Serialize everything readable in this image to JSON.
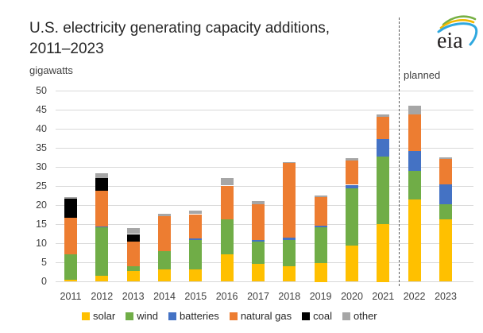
{
  "header": {
    "title_line1": "U.S. electricity generating capacity additions,",
    "title_line2": "2011–2023",
    "units_label": "gigawatts",
    "logo_text": "eia"
  },
  "annotations": {
    "planned_label": "planned"
  },
  "colors": {
    "gridline": "#D9D9D9",
    "axis_text": "#404040",
    "title_text": "#262626",
    "divider": "#595959",
    "solar": "#FFC000",
    "wind": "#70AD47",
    "batteries": "#4472C4",
    "natural_gas": "#ED7D31",
    "coal": "#000000",
    "other": "#A6A6A6"
  },
  "chart_data": {
    "type": "bar",
    "stacked": true,
    "title": "U.S. electricity generating capacity additions, 2011–2023",
    "xlabel": "",
    "ylabel": "gigawatts",
    "ylim": [
      0,
      50
    ],
    "ytick_step": 5,
    "grid": true,
    "legend_position": "bottom",
    "categories": [
      "2011",
      "2012",
      "2013",
      "2014",
      "2015",
      "2016",
      "2017",
      "2018",
      "2019",
      "2020",
      "2021",
      "2022",
      "2023"
    ],
    "planned_categories": [
      "2022",
      "2023"
    ],
    "series": [
      {
        "name": "solar",
        "color": "#FFC000",
        "values": [
          0.6,
          1.5,
          2.8,
          3.2,
          3.2,
          7.2,
          4.6,
          4.1,
          4.9,
          9.5,
          15.1,
          21.5,
          16.3
        ]
      },
      {
        "name": "wind",
        "color": "#70AD47",
        "values": [
          6.6,
          12.8,
          1.2,
          4.9,
          7.8,
          9.2,
          5.9,
          6.9,
          9.3,
          14.9,
          17.7,
          7.6,
          4.1
        ]
      },
      {
        "name": "batteries",
        "color": "#4472C4",
        "values": [
          0,
          0.2,
          0,
          0,
          0.3,
          0,
          0.5,
          0.5,
          0.4,
          1.0,
          4.6,
          5.1,
          5.1
        ]
      },
      {
        "name": "natural gas",
        "color": "#ED7D31",
        "values": [
          9.6,
          9.3,
          6.6,
          9.0,
          6.4,
          8.8,
          9.3,
          19.6,
          7.6,
          6.3,
          5.9,
          9.6,
          6.6
        ]
      },
      {
        "name": "coal",
        "color": "#000000",
        "values": [
          4.9,
          3.3,
          1.9,
          0,
          0,
          0,
          0,
          0,
          0,
          0,
          0,
          0,
          0
        ]
      },
      {
        "name": "other",
        "color": "#A6A6A6",
        "values": [
          0.5,
          1.4,
          1.6,
          0.7,
          0.9,
          1.9,
          0.9,
          0.3,
          0.4,
          0.7,
          0.6,
          2.4,
          0.5
        ]
      }
    ],
    "totals": [
      22.2,
      28.5,
      14.1,
      17.8,
      18.6,
      27.1,
      21.2,
      31.4,
      22.6,
      32.4,
      43.9,
      46.2,
      32.6
    ]
  }
}
